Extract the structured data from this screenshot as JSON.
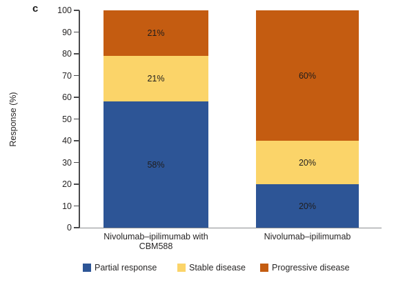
{
  "panel_label": "c",
  "chart_data": {
    "type": "bar",
    "subtype": "stacked-vertical",
    "title": "",
    "xlabel": "",
    "ylabel": "Response (%)",
    "ylim": [
      0,
      100
    ],
    "ytick_step": 10,
    "grid": false,
    "legend_position": "bottom",
    "stack_order": "bottom-to-top",
    "categories": [
      {
        "lines": [
          "Nivolumab–ipilimumab with",
          "CBM588"
        ]
      },
      {
        "lines": [
          "Nivolumab–ipilimumab"
        ]
      }
    ],
    "series": [
      {
        "name": "Partial response",
        "color": "#2d5596",
        "values": [
          58,
          20
        ],
        "labels": [
          "58%",
          "20%"
        ]
      },
      {
        "name": "Stable disease",
        "color": "#fbd469",
        "values": [
          21,
          20
        ],
        "labels": [
          "21%",
          "20%"
        ]
      },
      {
        "name": "Progressive disease",
        "color": "#c45c11",
        "values": [
          21,
          60
        ],
        "labels": [
          "21%",
          "60%"
        ]
      }
    ]
  },
  "colors": {
    "axis": "#48484a",
    "baseline": "#8a8c8e",
    "text": "#272525",
    "background": "#ffffff"
  }
}
